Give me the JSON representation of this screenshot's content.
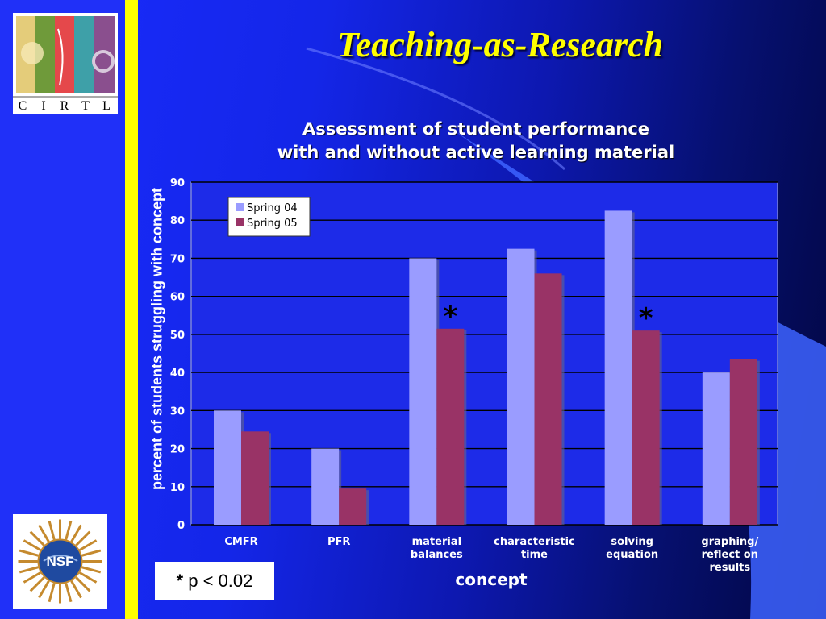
{
  "slide": {
    "title": "Teaching-as-Research",
    "logo_top": {
      "letters": [
        "C",
        "I",
        "R",
        "T",
        "L"
      ],
      "icon": "cirtl-logo"
    },
    "logo_bottom": {
      "text": "NSF",
      "icon": "nsf-seal-icon"
    },
    "footnote": {
      "symbol": "*",
      "text": "p < 0.02"
    }
  },
  "colors": {
    "spring04": "#9a9cff",
    "spring05": "#993366",
    "title": "#ffff00",
    "plot_bg": "#1d2be8"
  },
  "chart_data": {
    "type": "bar",
    "title_lines": [
      "Assessment of student performance",
      "with and without active learning material"
    ],
    "xlabel": "concept",
    "ylabel": "percent of students struggling with concept",
    "ylim": [
      0,
      90
    ],
    "yticks": [
      0,
      10,
      20,
      30,
      40,
      50,
      60,
      70,
      80,
      90
    ],
    "grid": true,
    "legend": "top-left",
    "categories": [
      [
        "CMFR"
      ],
      [
        "PFR"
      ],
      [
        "material",
        "balances"
      ],
      [
        "characteristic",
        "time"
      ],
      [
        "solving",
        "equation"
      ],
      [
        "graphing/",
        "reflect on",
        "results"
      ]
    ],
    "series": [
      {
        "name": "Spring 04",
        "values": [
          30,
          20,
          70,
          72.5,
          82.5,
          40
        ]
      },
      {
        "name": "Spring 05",
        "values": [
          24.5,
          9.5,
          51.5,
          66,
          51,
          43.5
        ]
      }
    ],
    "annotations": [
      {
        "category_index": 2,
        "text": "*"
      },
      {
        "category_index": 4,
        "text": "*"
      }
    ]
  }
}
